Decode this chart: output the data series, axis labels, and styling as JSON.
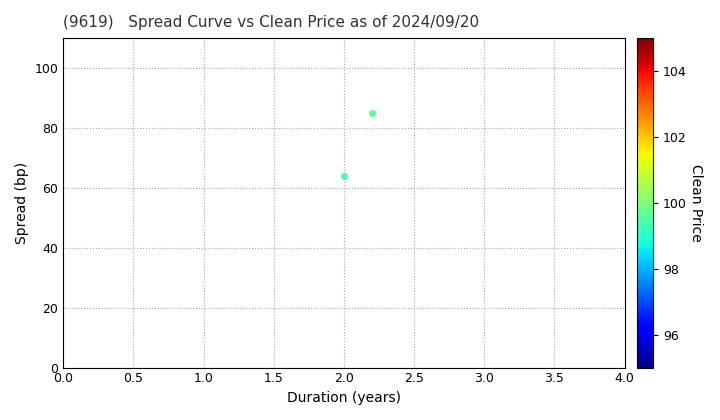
{
  "title": "(9619)   Spread Curve vs Clean Price as of 2024/09/20",
  "xlabel": "Duration (years)",
  "ylabel": "Spread (bp)",
  "colorbar_label": "Clean Price",
  "points": [
    {
      "duration": 2.0,
      "spread": 64,
      "clean_price": 99.5
    },
    {
      "duration": 2.2,
      "spread": 85,
      "clean_price": 99.7
    }
  ],
  "xlim": [
    0.0,
    4.0
  ],
  "ylim": [
    0,
    110
  ],
  "xticks": [
    0.0,
    0.5,
    1.0,
    1.5,
    2.0,
    2.5,
    3.0,
    3.5,
    4.0
  ],
  "yticks": [
    0,
    20,
    40,
    60,
    80,
    100
  ],
  "cmap_vmin": 95,
  "cmap_vmax": 105,
  "cbar_ticks": [
    96,
    98,
    100,
    102,
    104
  ],
  "marker_size": 18,
  "background_color": "#ffffff",
  "title_fontsize": 11,
  "axis_label_fontsize": 10
}
